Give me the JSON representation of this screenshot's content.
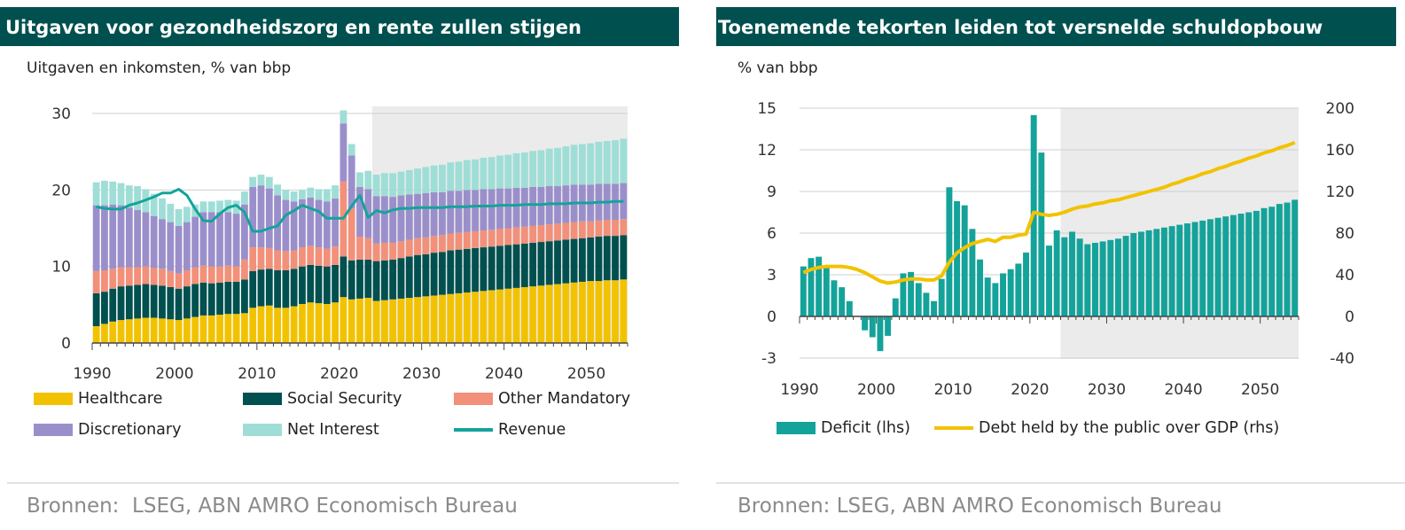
{
  "left": {
    "title": "Uitgaven voor gezondheidszorg en rente zullen stijgen",
    "subtitle": "Uitgaven en inkomsten, % van bbp",
    "source": "Bronnen:  LSEG, ABN AMRO Economisch Bureau",
    "legend": [
      {
        "label": "Healthcare",
        "color": "#f2c200",
        "kind": "bar"
      },
      {
        "label": "Social Security",
        "color": "#00504f",
        "kind": "bar"
      },
      {
        "label": "Other Mandatory",
        "color": "#f2907a",
        "kind": "bar"
      },
      {
        "label": "Discretionary",
        "color": "#9b8fcb",
        "kind": "bar"
      },
      {
        "label": "Net Interest",
        "color": "#9fded6",
        "kind": "bar"
      },
      {
        "label": "Revenue",
        "color": "#14a39a",
        "kind": "line"
      }
    ]
  },
  "right": {
    "title": "Toenemende tekorten leiden tot versnelde schuldopbouw",
    "subtitle": "% van bbp",
    "source": "Bronnen: LSEG, ABN AMRO Economisch Bureau",
    "legend": [
      {
        "label": "Deficit (lhs)",
        "color": "#14a39a",
        "kind": "bar"
      },
      {
        "label": "Debt held by the public over GDP (rhs)",
        "color": "#f2c200",
        "kind": "line"
      }
    ]
  },
  "chart_data": [
    {
      "type": "bar",
      "stacked": true,
      "title": "Uitgaven voor gezondheidszorg en rente zullen stijgen",
      "ylabel": "Uitgaven en inkomsten, % van bbp",
      "ylim": [
        0,
        30
      ],
      "yticks": [
        0,
        10,
        20,
        30
      ],
      "xticks": [
        1990,
        2000,
        2010,
        2020,
        2030,
        2040,
        2050
      ],
      "x_start": 1990,
      "x_end": 2054,
      "projection_from": 2024,
      "series": [
        {
          "name": "Healthcare",
          "values": [
            2.2,
            2.5,
            2.8,
            3.0,
            3.1,
            3.2,
            3.3,
            3.3,
            3.2,
            3.1,
            3.0,
            3.2,
            3.4,
            3.6,
            3.6,
            3.7,
            3.8,
            3.8,
            3.9,
            4.6,
            4.8,
            4.9,
            4.6,
            4.6,
            4.8,
            5.1,
            5.3,
            5.2,
            5.1,
            5.3,
            6.0,
            5.7,
            5.8,
            5.9,
            5.5,
            5.6,
            5.7,
            5.8,
            5.9,
            6.0,
            6.1,
            6.2,
            6.3,
            6.4,
            6.5,
            6.6,
            6.7,
            6.8,
            6.9,
            7.0,
            7.1,
            7.2,
            7.3,
            7.4,
            7.5,
            7.6,
            7.7,
            7.8,
            7.9,
            8.0,
            8.1,
            8.1,
            8.2,
            8.2,
            8.3
          ]
        },
        {
          "name": "Social Security",
          "values": [
            4.3,
            4.2,
            4.3,
            4.4,
            4.4,
            4.4,
            4.4,
            4.3,
            4.3,
            4.2,
            4.1,
            4.2,
            4.3,
            4.3,
            4.2,
            4.2,
            4.2,
            4.2,
            4.4,
            4.8,
            4.8,
            4.8,
            4.9,
            4.9,
            4.9,
            4.9,
            4.9,
            4.9,
            4.9,
            4.9,
            5.3,
            5.1,
            5.1,
            5.0,
            5.2,
            5.2,
            5.2,
            5.3,
            5.4,
            5.5,
            5.5,
            5.6,
            5.6,
            5.7,
            5.7,
            5.7,
            5.7,
            5.7,
            5.7,
            5.7,
            5.7,
            5.7,
            5.7,
            5.7,
            5.7,
            5.7,
            5.7,
            5.7,
            5.7,
            5.7,
            5.7,
            5.8,
            5.8,
            5.8,
            5.8
          ]
        },
        {
          "name": "Other Mandatory",
          "values": [
            2.9,
            2.8,
            2.6,
            2.5,
            2.4,
            2.3,
            2.3,
            2.2,
            2.2,
            2.1,
            2.0,
            2.1,
            2.2,
            2.2,
            2.2,
            2.1,
            2.1,
            2.0,
            2.6,
            3.1,
            2.9,
            2.7,
            2.6,
            2.5,
            2.4,
            2.5,
            2.5,
            2.4,
            2.3,
            2.4,
            9.8,
            6.8,
            3.0,
            2.8,
            2.3,
            2.3,
            2.2,
            2.2,
            2.2,
            2.2,
            2.2,
            2.2,
            2.2,
            2.2,
            2.2,
            2.2,
            2.2,
            2.2,
            2.2,
            2.2,
            2.2,
            2.2,
            2.2,
            2.2,
            2.2,
            2.2,
            2.2,
            2.2,
            2.2,
            2.2,
            2.1,
            2.1,
            2.1,
            2.1,
            2.1
          ]
        },
        {
          "name": "Discretionary",
          "values": [
            8.6,
            8.5,
            8.4,
            8.1,
            7.8,
            7.5,
            7.1,
            6.8,
            6.5,
            6.4,
            6.2,
            6.3,
            6.6,
            7.0,
            7.1,
            7.1,
            7.0,
            6.9,
            7.2,
            7.9,
            8.1,
            7.8,
            7.2,
            6.7,
            6.4,
            6.3,
            6.3,
            6.2,
            6.2,
            6.3,
            7.6,
            6.9,
            6.5,
            6.4,
            6.2,
            6.1,
            6.0,
            6.0,
            5.9,
            5.8,
            5.8,
            5.7,
            5.6,
            5.6,
            5.5,
            5.5,
            5.4,
            5.4,
            5.3,
            5.3,
            5.2,
            5.2,
            5.1,
            5.1,
            5.0,
            5.0,
            4.9,
            4.9,
            4.9,
            4.8,
            4.8,
            4.8,
            4.7,
            4.7,
            4.7
          ]
        },
        {
          "name": "Net Interest",
          "values": [
            3.0,
            3.2,
            3.0,
            2.9,
            2.9,
            3.1,
            3.0,
            2.9,
            2.7,
            2.4,
            2.2,
            2.0,
            1.6,
            1.4,
            1.4,
            1.5,
            1.6,
            1.7,
            1.7,
            1.3,
            1.4,
            1.5,
            1.4,
            1.3,
            1.3,
            1.2,
            1.3,
            1.4,
            1.6,
            1.7,
            1.7,
            1.5,
            1.9,
            2.4,
            2.8,
            3.0,
            3.1,
            3.1,
            3.2,
            3.3,
            3.4,
            3.5,
            3.6,
            3.7,
            3.8,
            3.9,
            4.0,
            4.1,
            4.2,
            4.3,
            4.4,
            4.5,
            4.6,
            4.7,
            4.8,
            4.9,
            5.0,
            5.1,
            5.2,
            5.3,
            5.4,
            5.5,
            5.6,
            5.7,
            5.8
          ]
        },
        {
          "name": "Revenue",
          "type": "line",
          "values": [
            17.8,
            17.6,
            17.5,
            17.5,
            18.0,
            18.3,
            18.7,
            19.1,
            19.6,
            19.6,
            20.1,
            19.3,
            17.5,
            16.0,
            15.9,
            16.9,
            17.7,
            18.0,
            17.1,
            14.6,
            14.6,
            15.0,
            15.3,
            16.7,
            17.3,
            18.0,
            17.6,
            17.2,
            16.3,
            16.3,
            16.3,
            17.9,
            19.3,
            16.4,
            17.3,
            17.0,
            17.4,
            17.6,
            17.6,
            17.7,
            17.7,
            17.7,
            17.7,
            17.8,
            17.8,
            17.8,
            17.9,
            17.9,
            17.9,
            18.0,
            18.0,
            18.0,
            18.1,
            18.1,
            18.1,
            18.2,
            18.2,
            18.2,
            18.3,
            18.3,
            18.3,
            18.4,
            18.4,
            18.5,
            18.5
          ]
        }
      ]
    },
    {
      "type": "bar",
      "title": "Toenemende tekorten leiden tot versnelde schuldopbouw",
      "ylabel": "% van bbp",
      "ylim": [
        -3,
        15
      ],
      "yticks": [
        -3,
        0,
        3,
        6,
        9,
        12,
        15
      ],
      "y2lim": [
        -40,
        200
      ],
      "y2ticks": [
        -40,
        0,
        40,
        80,
        120,
        160,
        200
      ],
      "xticks": [
        1990,
        2000,
        2010,
        2020,
        2030,
        2040,
        2050
      ],
      "x_start": 1990,
      "x_end": 2054,
      "projection_from": 2024,
      "series": [
        {
          "name": "Deficit (lhs)",
          "axis": "left",
          "values": [
            3.6,
            4.2,
            4.3,
            3.6,
            2.6,
            2.1,
            1.1,
            0.0,
            -1.0,
            -1.5,
            -2.5,
            -1.4,
            1.3,
            3.1,
            3.2,
            2.4,
            1.7,
            1.1,
            2.7,
            9.3,
            8.3,
            8.0,
            6.3,
            4.1,
            2.8,
            2.4,
            3.1,
            3.4,
            3.8,
            4.6,
            14.5,
            11.8,
            5.1,
            6.2,
            5.7,
            6.1,
            5.6,
            5.2,
            5.3,
            5.4,
            5.5,
            5.6,
            5.8,
            6.0,
            6.1,
            6.2,
            6.3,
            6.4,
            6.5,
            6.6,
            6.7,
            6.8,
            6.9,
            7.0,
            7.1,
            7.2,
            7.3,
            7.4,
            7.5,
            7.6,
            7.8,
            7.9,
            8.1,
            8.2,
            8.4
          ]
        },
        {
          "name": "Debt held by the public over GDP (rhs)",
          "axis": "right",
          "type": "line",
          "values": [
            42,
            45,
            47,
            48,
            48,
            48,
            47,
            45,
            42,
            38,
            34,
            32,
            33,
            35,
            36,
            36,
            35,
            35,
            39,
            52,
            61,
            66,
            70,
            72,
            74,
            72,
            76,
            76,
            78,
            79,
            100,
            98,
            97,
            98,
            100,
            103,
            105,
            106,
            108,
            109,
            111,
            112,
            114,
            116,
            118,
            120,
            122,
            124,
            127,
            129,
            132,
            134,
            137,
            139,
            142,
            144,
            147,
            149,
            152,
            154,
            157,
            159,
            162,
            164,
            167
          ]
        }
      ]
    }
  ]
}
